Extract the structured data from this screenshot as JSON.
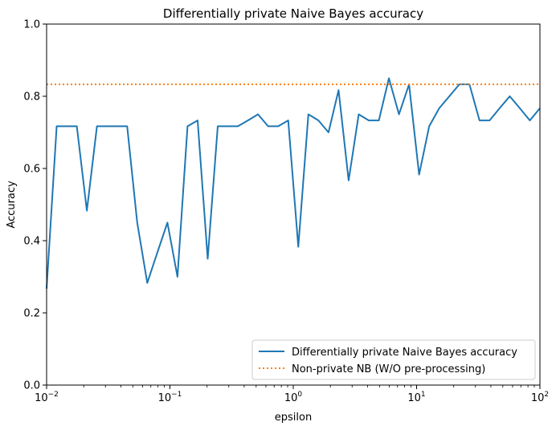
{
  "chart_data": {
    "type": "line",
    "title": "Differentially private Naive Bayes accuracy",
    "xlabel": "epsilon",
    "ylabel": "Accuracy",
    "xscale": "log",
    "xlim": [
      0.01,
      100
    ],
    "ylim": [
      0.0,
      1.0
    ],
    "grid": false,
    "legend_position": "bottom-right",
    "x_ticks": [
      {
        "value": 0.01,
        "base": "10",
        "exp": "−2"
      },
      {
        "value": 0.1,
        "base": "10",
        "exp": "−1"
      },
      {
        "value": 1,
        "base": "10",
        "exp": "0"
      },
      {
        "value": 10,
        "base": "10",
        "exp": "1"
      },
      {
        "value": 100,
        "base": "10",
        "exp": "2"
      }
    ],
    "y_ticks": [
      {
        "value": 0.0,
        "label": "0.0"
      },
      {
        "value": 0.2,
        "label": "0.2"
      },
      {
        "value": 0.4,
        "label": "0.4"
      },
      {
        "value": 0.6,
        "label": "0.6"
      },
      {
        "value": 0.8,
        "label": "0.8"
      },
      {
        "value": 1.0,
        "label": "1.0"
      }
    ],
    "series": [
      {
        "name": "Differentially private Naive Bayes accuracy",
        "color": "#1f77b4",
        "style": "solid",
        "x": [
          0.01,
          0.01207,
          0.01456,
          0.01758,
          0.02121,
          0.0256,
          0.0309,
          0.03728,
          0.045,
          0.05429,
          0.06551,
          0.07906,
          0.0954,
          0.1151,
          0.1389,
          0.1677,
          0.2024,
          0.2442,
          0.2947,
          0.3556,
          0.4292,
          0.5179,
          0.625,
          0.7543,
          0.9103,
          1.0985,
          1.3257,
          1.5999,
          1.9307,
          2.33,
          2.8118,
          3.3932,
          4.0949,
          4.9417,
          5.9636,
          7.1969,
          8.6851,
          10.481,
          12.649,
          15.264,
          18.421,
          22.23,
          26.827,
          32.375,
          39.069,
          47.149,
          56.899,
          68.665,
          82.864,
          100.0
        ],
        "y": [
          0.267,
          0.717,
          0.717,
          0.717,
          0.483,
          0.717,
          0.717,
          0.717,
          0.717,
          0.45,
          0.283,
          0.367,
          0.45,
          0.3,
          0.717,
          0.733,
          0.35,
          0.717,
          0.717,
          0.717,
          0.733,
          0.75,
          0.717,
          0.717,
          0.733,
          0.383,
          0.75,
          0.733,
          0.7,
          0.817,
          0.567,
          0.75,
          0.733,
          0.733,
          0.85,
          0.75,
          0.833,
          0.583,
          0.717,
          0.767,
          0.8,
          0.833,
          0.833,
          0.733,
          0.733,
          0.767,
          0.8,
          0.767,
          0.733,
          0.767
        ]
      },
      {
        "name": "Non-private NB (W/O pre-processing)",
        "color": "#ff7f0e",
        "style": "dotted",
        "x": [
          0.01,
          100
        ],
        "y": [
          0.833,
          0.833
        ]
      }
    ]
  }
}
